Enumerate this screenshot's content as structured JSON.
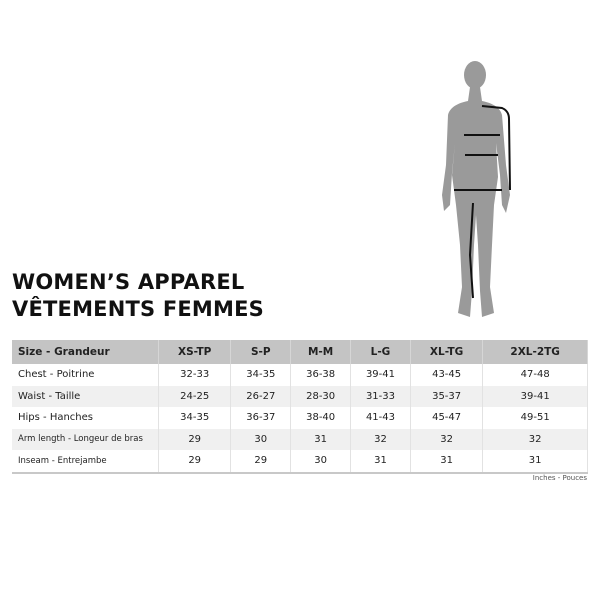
{
  "title_en": "WOMEN’S APPAREL",
  "title_fr": "VÊTEMENTS FEMMES",
  "table": {
    "headers": [
      "Size - Grandeur",
      "XS-TP",
      "S-P",
      "M-M",
      "L-G",
      "XL-TG",
      "2XL-2TG"
    ],
    "rows": [
      [
        "Chest - Poitrine",
        "32-33",
        "34-35",
        "36-38",
        "39-41",
        "43-45",
        "47-48"
      ],
      [
        "Waist - Taille",
        "24-25",
        "26-27",
        "28-30",
        "31-33",
        "35-37",
        "39-41"
      ],
      [
        "Hips - Hanches",
        "34-35",
        "36-37",
        "38-40",
        "41-43",
        "45-47",
        "49-51"
      ],
      [
        "Arm length - Longeur de bras",
        "29",
        "30",
        "31",
        "32",
        "32",
        "32"
      ],
      [
        "Inseam - Entrejambe",
        "29",
        "29",
        "30",
        "31",
        "31",
        "31"
      ]
    ]
  },
  "units": "Inches - Pouces",
  "colors": {
    "silhouette": "#9a9a9a",
    "header_bg": "#c4c4c4",
    "row_alt": "#f0f0f0"
  }
}
